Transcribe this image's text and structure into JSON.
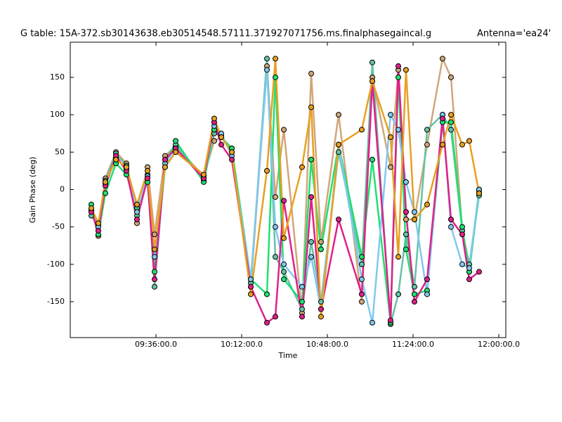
{
  "chart_data": {
    "type": "line",
    "title": "G table: 15A-372.sb30143638.eb30514548.57111.371927071756.ms.finalphasegaincal.g",
    "subtitle": "Antenna='ea24'",
    "x_label": "Time",
    "y_label": "Gain Phase (deg)",
    "xlim": [
      "09:00:00.0",
      "12:02:57.0"
    ],
    "xticks": [
      "09:36:00.0",
      "10:12:00.0",
      "10:48:00.0",
      "11:24:00.0",
      "12:00:00.0"
    ],
    "ylim": [
      -198,
      197
    ],
    "yticks": [
      -150,
      -100,
      -50,
      0,
      50,
      100,
      150
    ],
    "x": [
      "09:08:51.0",
      "09:11:48.0",
      "09:14:45.0",
      "09:19:11.0",
      "09:23:36.0",
      "09:28:02.0",
      "09:32:28.0",
      "09:35:25.0",
      "09:39:50.0",
      "09:44:16.0",
      "09:56:04.0",
      "10:00:29.0",
      "10:03:26.0",
      "10:07:52.0",
      "10:15:50.0",
      "10:22:37.0",
      "10:26:10.0",
      "10:29:42.0",
      "10:37:22.0",
      "10:41:13.0",
      "10:45:20.0",
      "10:52:43.0",
      "11:02:27.0",
      "11:06:53.0",
      "11:14:33.0",
      "11:17:48.0",
      "11:21:02.0",
      "11:24:35.0",
      "11:29:54.0",
      "11:36:23.0",
      "11:39:56.0",
      "11:44:39.0",
      "11:47:36.0",
      "11:51:44.0"
    ],
    "series": [
      {
        "color": "#d2a679",
        "values": [
          -27,
          -62,
          15,
          50,
          35,
          -45,
          30,
          -60,
          45,
          58,
          18,
          65,
          70,
          55,
          -130,
          165,
          -10,
          80,
          -165,
          155,
          -70,
          100,
          -150,
          150,
          30,
          160,
          -40,
          -40,
          60,
          175,
          150,
          -55,
          -110,
          0
        ]
      },
      {
        "color": "#66c2a5",
        "values": [
          -35,
          -48,
          12,
          48,
          32,
          -35,
          20,
          -130,
          40,
          60,
          12,
          75,
          72,
          50,
          -125,
          175,
          -90,
          -110,
          -160,
          -70,
          -150,
          50,
          -100,
          170,
          -180,
          -140,
          -60,
          -130,
          80,
          100,
          80,
          -55,
          -100,
          -8
        ]
      },
      {
        "color": "#20e070",
        "values": [
          -20,
          -60,
          -5,
          35,
          20,
          -25,
          10,
          -110,
          30,
          65,
          10,
          80,
          70,
          55,
          -120,
          -140,
          150,
          -120,
          -150,
          40,
          -80,
          60,
          -90,
          40,
          -178,
          150,
          -80,
          -140,
          -135,
          90,
          90,
          -50,
          -110,
          -3
        ]
      },
      {
        "color": "#80c8f0",
        "values": [
          -28,
          -50,
          8,
          42,
          28,
          -30,
          18,
          -90,
          35,
          55,
          15,
          85,
          75,
          45,
          -120,
          160,
          -50,
          -100,
          -130,
          -90,
          -160,
          60,
          -120,
          -178,
          100,
          80,
          10,
          -30,
          -140,
          100,
          -50,
          -100,
          -105,
          0
        ]
      },
      {
        "color": "#e0208a",
        "values": [
          -30,
          -55,
          5,
          45,
          25,
          -40,
          15,
          -120,
          40,
          55,
          15,
          90,
          60,
          40,
          -130,
          -178,
          -170,
          -15,
          -170,
          -10,
          -160,
          -40,
          -140,
          145,
          -175,
          165,
          -30,
          -150,
          -120,
          95,
          -40,
          -60,
          -120,
          -110
        ]
      },
      {
        "color": "#e8a020",
        "values": [
          -25,
          -45,
          10,
          40,
          30,
          -20,
          25,
          -80,
          30,
          50,
          20,
          95,
          70,
          50,
          -140,
          25,
          175,
          -65,
          30,
          110,
          -170,
          60,
          80,
          145,
          70,
          -90,
          160,
          -40,
          -20,
          60,
          100,
          60,
          65,
          -5
        ]
      }
    ]
  }
}
